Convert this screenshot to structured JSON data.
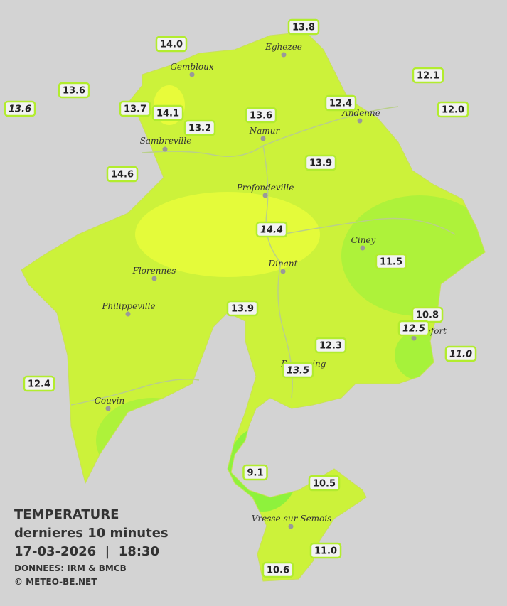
{
  "legend": {
    "title": "TEMPERATURE",
    "subtitle": "dernieres 10 minutes",
    "datetime": "17-03-2026  |  18:30",
    "source": "DONNEES: IRM & BMCB",
    "copyright": "© METEO-BE.NET"
  },
  "cities": [
    "Eghezee",
    "Gembloux",
    "Andenne",
    "Namur",
    "Sambreville",
    "Profondeville",
    "Ciney",
    "Dinant",
    "Florennes",
    "Philippeville",
    "Rochefort",
    "Beauraing",
    "Couvin",
    "Vresse-sur-Semois"
  ],
  "stations": [
    {
      "label": "14.0",
      "style": "normal"
    },
    {
      "label": "13.8",
      "style": "normal"
    },
    {
      "label": "12.1",
      "style": "normal"
    },
    {
      "label": "13.6",
      "style": "normal"
    },
    {
      "label": "13.6",
      "style": "italic"
    },
    {
      "label": "13.7",
      "style": "normal"
    },
    {
      "label": "14.1",
      "style": "normal"
    },
    {
      "label": "13.6",
      "style": "normal"
    },
    {
      "label": "12.4",
      "style": "normal"
    },
    {
      "label": "12.0",
      "style": "normal"
    },
    {
      "label": "13.2",
      "style": "normal"
    },
    {
      "label": "13.9",
      "style": "normal"
    },
    {
      "label": "14.6",
      "style": "normal"
    },
    {
      "label": "14.4",
      "style": "italic"
    },
    {
      "label": "11.5",
      "style": "normal"
    },
    {
      "label": "13.9",
      "style": "normal"
    },
    {
      "label": "10.8",
      "style": "normal"
    },
    {
      "label": "12.5",
      "style": "italic"
    },
    {
      "label": "11.0",
      "style": "italic"
    },
    {
      "label": "12.3",
      "style": "normal"
    },
    {
      "label": "13.5",
      "style": "italic"
    },
    {
      "label": "12.4",
      "style": "normal"
    },
    {
      "label": "9.1",
      "style": "normal"
    },
    {
      "label": "10.5",
      "style": "normal"
    },
    {
      "label": "11.0",
      "style": "normal"
    },
    {
      "label": "10.6",
      "style": "normal"
    }
  ]
}
